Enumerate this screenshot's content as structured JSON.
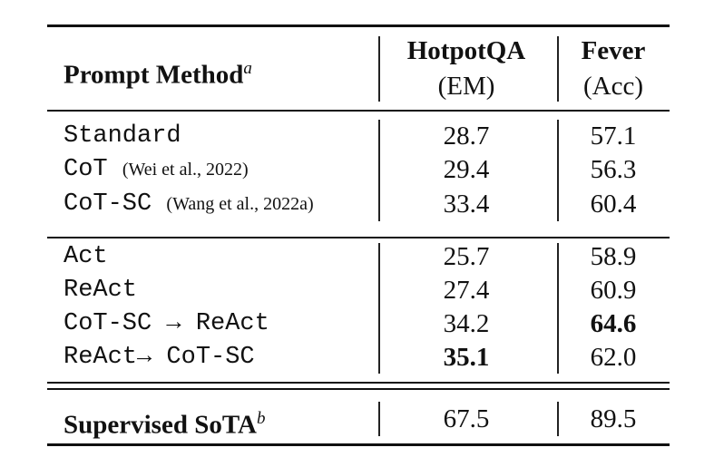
{
  "header": {
    "method": "Prompt Method",
    "method_note": "a",
    "hotpotqa": "HotpotQA",
    "hotpotqa_metric": "(EM)",
    "fever": "Fever",
    "fever_metric": "(Acc)"
  },
  "groups": [
    [
      {
        "method": "Standard",
        "hotpotqa": "28.7",
        "fever": "57.1"
      },
      {
        "method": "CoT",
        "citation": "(Wei et al., 2022)",
        "hotpotqa": "29.4",
        "fever": "56.3"
      },
      {
        "method": "CoT-SC",
        "citation": "(Wang et al., 2022a)",
        "hotpotqa": "33.4",
        "fever": "60.4"
      }
    ],
    [
      {
        "method": "Act",
        "hotpotqa": "25.7",
        "fever": "58.9"
      },
      {
        "method": "ReAct",
        "hotpotqa": "27.4",
        "fever": "60.9"
      },
      {
        "method": "CoT-SC → ReAct",
        "hotpotqa": "34.2",
        "fever": "64.6"
      },
      {
        "method": "ReAct→ CoT-SC",
        "hotpotqa": "35.1",
        "fever": "62.0"
      }
    ],
    [
      {
        "method": "Supervised SoTA",
        "method_note": "b",
        "hotpotqa": "67.5",
        "fever": "89.5"
      }
    ]
  ]
}
